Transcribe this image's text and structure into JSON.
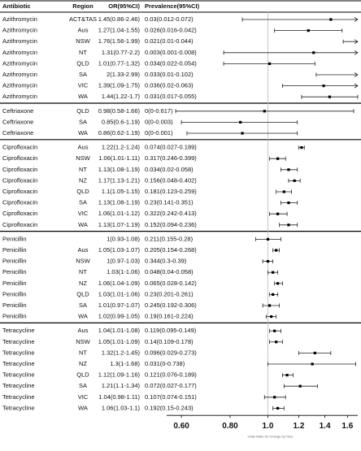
{
  "chart_data": {
    "type": "forest",
    "columns": [
      "Antibiotic",
      "Region",
      "OR(95%CI)",
      "Prevalence(95%CI)"
    ],
    "x_label": "Odds Ratio for Change by Time",
    "xlim": [
      0.55,
      1.7
    ],
    "log_x": true,
    "xticks": [
      {
        "value": 0.6,
        "label": "0.60"
      },
      {
        "value": 0.8,
        "label": "0.80"
      },
      {
        "value": 1,
        "label": "1.0"
      },
      1.2,
      1.4,
      1.6
    ],
    "reference_line": 1,
    "rows": [
      {
        "antibiotic": "Azithromycin",
        "region": "ACT&TAS",
        "or_ci": "1.45(0.86-2.46)",
        "prevalence": "0.03(0.012-0.072)",
        "or": 1.45,
        "lower": 0.86,
        "upper": 2.46
      },
      {
        "antibiotic": "Azithromycin",
        "region": "Aus",
        "or_ci": "1.27(1.04-1.55)",
        "prevalence": "0.026(0.016-0.042)",
        "or": 1.27,
        "lower": 1.04,
        "upper": 1.55
      },
      {
        "antibiotic": "Azithromycin",
        "region": "NSW",
        "or_ci": "1.76(1.56-1.99)",
        "prevalence": "0.021(0.01-0.044)",
        "or": 1.76,
        "lower": 1.56,
        "upper": 1.99
      },
      {
        "antibiotic": "Azithromycin",
        "region": "NT",
        "or_ci": "1.31(0.77-2.2)",
        "prevalence": "0.003(0.001-0.008)",
        "or": 1.31,
        "lower": 0.77,
        "upper": 2.2
      },
      {
        "antibiotic": "Azithromycin",
        "region": "QLD",
        "or_ci": "1.01(0.77-1.32)",
        "prevalence": "0.034(0.022-0.054)",
        "or": 1.01,
        "lower": 0.77,
        "upper": 1.32
      },
      {
        "antibiotic": "Azithromycin",
        "region": "SA",
        "or_ci": "2(1.33-2.99)",
        "prevalence": "0.033(0.01-0.102)",
        "or": 2,
        "lower": 1.33,
        "upper": 2.99
      },
      {
        "antibiotic": "Azithromycin",
        "region": "VIC",
        "or_ci": "1.39(1.09-1.75)",
        "prevalence": "0.036(0.02-0.063)",
        "or": 1.39,
        "lower": 1.09,
        "upper": 1.75
      },
      {
        "antibiotic": "Azithromycin",
        "region": "WA",
        "or_ci": "1.44(1.22-1.7)",
        "prevalence": "0.031(0.017-0.055)",
        "or": 1.44,
        "lower": 1.22,
        "upper": 1.7
      },
      {
        "antibiotic": "Ceftriaxone",
        "region": "QLD",
        "or_ci": "0.98(0.58-1.66)",
        "prevalence": "0(0-0.617)",
        "or": 0.98,
        "lower": 0.58,
        "upper": 1.66
      },
      {
        "antibiotic": "Ceftriaxone",
        "region": "SA",
        "or_ci": "0.85(0.6-1.19)",
        "prevalence": "0(0-0.003)",
        "or": 0.85,
        "lower": 0.6,
        "upper": 1.19
      },
      {
        "antibiotic": "Ceftriaxone",
        "region": "WA",
        "or_ci": "0.86(0.62-1.19)",
        "prevalence": "0(0-0.001)",
        "or": 0.86,
        "lower": 0.62,
        "upper": 1.19
      },
      {
        "antibiotic": "Ciprofloxacin",
        "region": "Aus",
        "or_ci": "1.22(1.2-1.24)",
        "prevalence": "0.074(0.027-0.189)",
        "or": 1.22,
        "lower": 1.2,
        "upper": 1.24
      },
      {
        "antibiotic": "Ciprofloxacin",
        "region": "NSW",
        "or_ci": "1.06(1.01-1.11)",
        "prevalence": "0.317(0.246-0.399)",
        "or": 1.06,
        "lower": 1.01,
        "upper": 1.11
      },
      {
        "antibiotic": "Ciprofloxacin",
        "region": "NT",
        "or_ci": "1.13(1.08-1.19)",
        "prevalence": "0.034(0.02-0.058)",
        "or": 1.13,
        "lower": 1.08,
        "upper": 1.19
      },
      {
        "antibiotic": "Ciprofloxacin",
        "region": "NZ",
        "or_ci": "1.17(1.13-1.21)",
        "prevalence": "0.156(0.048-0.402)",
        "or": 1.17,
        "lower": 1.13,
        "upper": 1.21
      },
      {
        "antibiotic": "Ciprofloxacin",
        "region": "QLD",
        "or_ci": "1.1(1.05-1.15)",
        "prevalence": "0.181(0.123-0.259)",
        "or": 1.1,
        "lower": 1.05,
        "upper": 1.15
      },
      {
        "antibiotic": "Ciprofloxacin",
        "region": "SA",
        "or_ci": "1.13(1.08-1.19)",
        "prevalence": "0.23(0.141-0.351)",
        "or": 1.13,
        "lower": 1.08,
        "upper": 1.19
      },
      {
        "antibiotic": "Ciprofloxacin",
        "region": "VIC",
        "or_ci": "1.06(1.01-1.12)",
        "prevalence": "0.322(0.242-0.413)",
        "or": 1.06,
        "lower": 1.01,
        "upper": 1.12
      },
      {
        "antibiotic": "Ciprofloxacin",
        "region": "WA",
        "or_ci": "1.13(1.07-1.19)",
        "prevalence": "0.152(0.094-0.236)",
        "or": 1.13,
        "lower": 1.07,
        "upper": 1.19
      },
      {
        "antibiotic": "Penicillin",
        "region": null,
        "or_ci": "1(0.93-1.08)",
        "prevalence": "0.211(0.155-0.28)",
        "or": 1,
        "lower": 0.93,
        "upper": 1.08
      },
      {
        "antibiotic": "Penicillin",
        "region": "Aus",
        "or_ci": "1.05(1.03-1.07)",
        "prevalence": "0.205(0.154-0.268)",
        "or": 1.05,
        "lower": 1.03,
        "upper": 1.07
      },
      {
        "antibiotic": "Penicillin",
        "region": "NSW",
        "or_ci": "1(0.97-1.03)",
        "prevalence": "0.344(0.3-0.39)",
        "or": 1,
        "lower": 0.97,
        "upper": 1.03
      },
      {
        "antibiotic": "Penicillin",
        "region": "NT",
        "or_ci": "1.03(1-1.06)",
        "prevalence": "0.048(0.04-0.058)",
        "or": 1.03,
        "lower": 1,
        "upper": 1.06
      },
      {
        "antibiotic": "Penicillin",
        "region": "NZ",
        "or_ci": "1.06(1.04-1.09)",
        "prevalence": "0.065(0.028-0.142)",
        "or": 1.06,
        "lower": 1.04,
        "upper": 1.09
      },
      {
        "antibiotic": "Penicillin",
        "region": "QLD",
        "or_ci": "1.03(1.01-1.06)",
        "prevalence": "0.23(0.201-0.261)",
        "or": 1.03,
        "lower": 1.01,
        "upper": 1.06
      },
      {
        "antibiotic": "Penicillin",
        "region": "SA",
        "or_ci": "1.01(0.97-1.07)",
        "prevalence": "0.245(0.192-0.306)",
        "or": 1.01,
        "lower": 0.97,
        "upper": 1.07
      },
      {
        "antibiotic": "Penicillin",
        "region": "WA",
        "or_ci": "1.02(0.99-1.05)",
        "prevalence": "0.19(0.161-0.224)",
        "or": 1.02,
        "lower": 0.99,
        "upper": 1.05
      },
      {
        "antibiotic": "Tetracycline",
        "region": "Aus",
        "or_ci": "1.04(1.01-1.08)",
        "prevalence": "0.119(0.095-0.149)",
        "or": 1.04,
        "lower": 1.01,
        "upper": 1.08
      },
      {
        "antibiotic": "Tetracycline",
        "region": "NSW",
        "or_ci": "1.05(1.01-1.09)",
        "prevalence": "0.14(0.109-0.178)",
        "or": 1.05,
        "lower": 1.01,
        "upper": 1.09
      },
      {
        "antibiotic": "Tetracycline",
        "region": "NT",
        "or_ci": "1.32(1.2-1.45)",
        "prevalence": "0.096(0.029-0.273)",
        "or": 1.32,
        "lower": 1.2,
        "upper": 1.45
      },
      {
        "antibiotic": "Tetracycline",
        "region": "NZ",
        "or_ci": "1.3(1-1.68)",
        "prevalence": "0.031(0-0.738)",
        "or": 1.3,
        "lower": 1,
        "upper": 1.68
      },
      {
        "antibiotic": "Tetracycline",
        "region": "QLD",
        "or_ci": "1.12(1.09-1.16)",
        "prevalence": "0.121(0.076-0.189)",
        "or": 1.12,
        "lower": 1.09,
        "upper": 1.16
      },
      {
        "antibiotic": "Tetracycline",
        "region": "SA",
        "or_ci": "1.21(1.1-1.34)",
        "prevalence": "0.072(0.027-0.177)",
        "or": 1.21,
        "lower": 1.1,
        "upper": 1.34
      },
      {
        "antibiotic": "Tetracycline",
        "region": "VIC",
        "or_ci": "1.04(0.98-1.11)",
        "prevalence": "0.107(0.074-0.151)",
        "or": 1.04,
        "lower": 0.98,
        "upper": 1.11
      },
      {
        "antibiotic": "Tetracycline",
        "region": "WA",
        "or_ci": "1.06(1.03-1.1)",
        "prevalence": "0.192(0.15-0.243)",
        "or": 1.06,
        "lower": 1.03,
        "upper": 1.1
      }
    ]
  }
}
